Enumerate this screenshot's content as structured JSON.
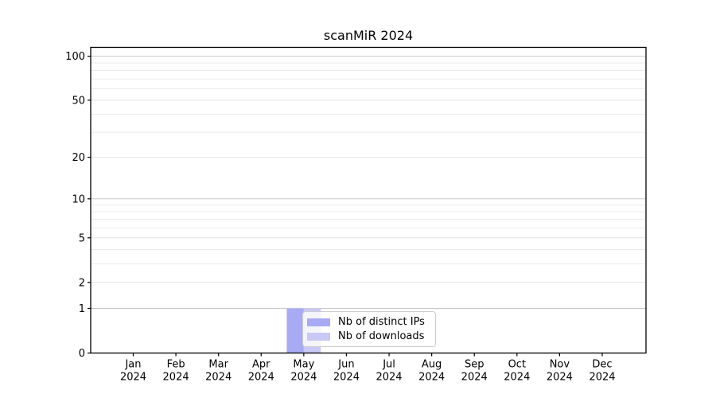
{
  "title": "scanMiR 2024",
  "colors": {
    "ips_series": "#a9aaf4",
    "downloads_series": "#c9c9f6",
    "grid_major": "#c8c8c8",
    "grid_minor": "#ebebeb",
    "axis": "#000000",
    "legend_border": "#cccccc"
  },
  "legend": {
    "items": [
      {
        "label": "Nb of distinct IPs",
        "series": "ips_series"
      },
      {
        "label": "Nb of downloads",
        "series": "downloads_series"
      }
    ]
  },
  "chart_data": {
    "type": "bar",
    "title": "scanMiR 2024",
    "categories": [
      "Jan",
      "Feb",
      "Mar",
      "Apr",
      "May",
      "Jun",
      "Jul",
      "Aug",
      "Sep",
      "Oct",
      "Nov",
      "Dec"
    ],
    "category_year": "2024",
    "series": [
      {
        "name": "Nb of distinct IPs",
        "color": "#a9aaf4",
        "values": [
          0,
          0,
          0,
          0,
          1,
          0,
          0,
          0,
          0,
          0,
          0,
          0
        ]
      },
      {
        "name": "Nb of downloads",
        "color": "#c9c9f6",
        "values": [
          0,
          0,
          0,
          0,
          1,
          0,
          0,
          0,
          0,
          0,
          0,
          0
        ]
      }
    ],
    "xlabel": "",
    "ylabel": "",
    "yscale": "log1p",
    "ylim": [
      0,
      115
    ],
    "y_major_ticks": [
      0,
      1,
      2,
      5,
      10,
      20,
      50,
      100
    ],
    "y_decade_ticks": [
      1,
      10,
      100
    ],
    "y_minor_gridlines": [
      3,
      4,
      6,
      7,
      8,
      9,
      30,
      40,
      60,
      70,
      80,
      90
    ],
    "grid": true,
    "legend_position": "lower center"
  }
}
